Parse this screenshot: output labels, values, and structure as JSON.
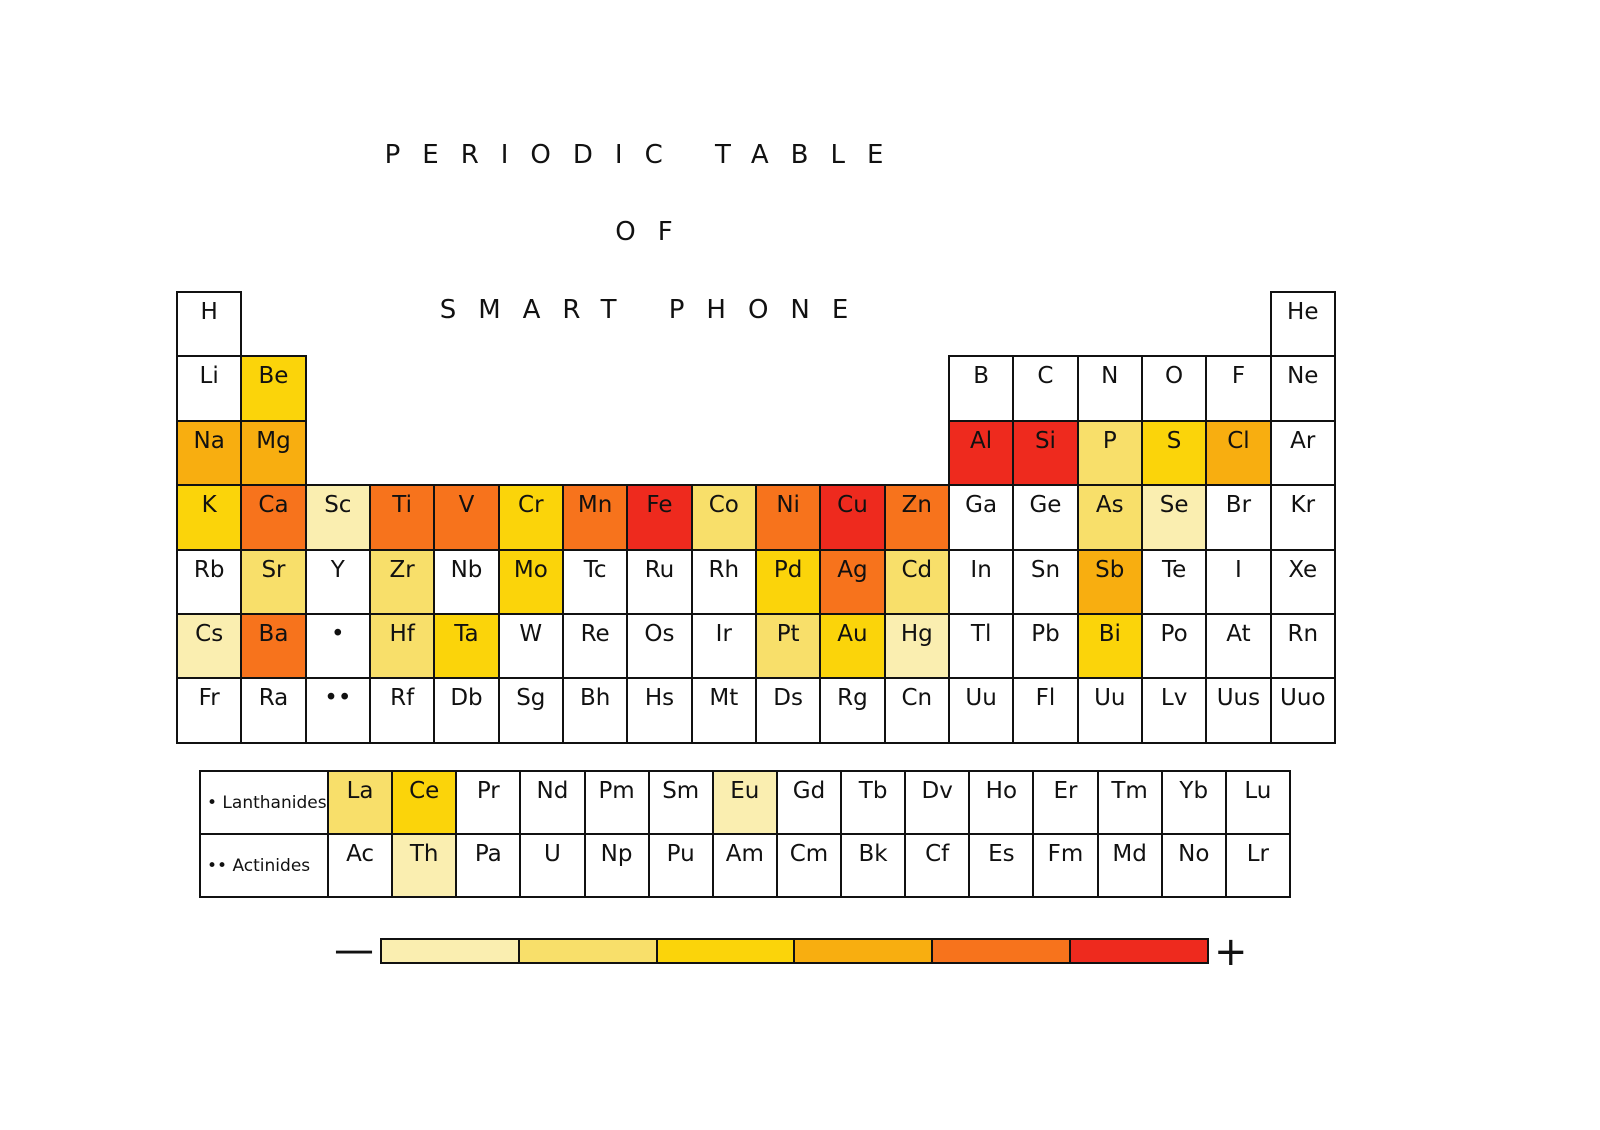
{
  "title": {
    "line1": "PERIODIC TABLE",
    "line2": "OF",
    "line3": "SMART PHONE"
  },
  "level_colors": [
    "#ffffff",
    "#faeeb0",
    "#f8df6a",
    "#fbd40a",
    "#f8ae10",
    "#f7731c",
    "#ee2a1e"
  ],
  "main_table": [
    [
      {
        "s": "H",
        "l": 0
      },
      {
        "s": "",
        "l": -1
      },
      {
        "s": "",
        "l": -1
      },
      {
        "s": "",
        "l": -1
      },
      {
        "s": "",
        "l": -1
      },
      {
        "s": "",
        "l": -1
      },
      {
        "s": "",
        "l": -1
      },
      {
        "s": "",
        "l": -1
      },
      {
        "s": "",
        "l": -1
      },
      {
        "s": "",
        "l": -1
      },
      {
        "s": "",
        "l": -1
      },
      {
        "s": "",
        "l": -1
      },
      {
        "s": "",
        "l": -1
      },
      {
        "s": "",
        "l": -1
      },
      {
        "s": "",
        "l": -1
      },
      {
        "s": "",
        "l": -1
      },
      {
        "s": "",
        "l": -1
      },
      {
        "s": "He",
        "l": 0
      }
    ],
    [
      {
        "s": "Li",
        "l": 0
      },
      {
        "s": "Be",
        "l": 3
      },
      {
        "s": "",
        "l": -1
      },
      {
        "s": "",
        "l": -1
      },
      {
        "s": "",
        "l": -1
      },
      {
        "s": "",
        "l": -1
      },
      {
        "s": "",
        "l": -1
      },
      {
        "s": "",
        "l": -1
      },
      {
        "s": "",
        "l": -1
      },
      {
        "s": "",
        "l": -1
      },
      {
        "s": "",
        "l": -1
      },
      {
        "s": "",
        "l": -1
      },
      {
        "s": "B",
        "l": 0
      },
      {
        "s": "C",
        "l": 0
      },
      {
        "s": "N",
        "l": 0
      },
      {
        "s": "O",
        "l": 0
      },
      {
        "s": "F",
        "l": 0
      },
      {
        "s": "Ne",
        "l": 0
      }
    ],
    [
      {
        "s": "Na",
        "l": 4
      },
      {
        "s": "Mg",
        "l": 4
      },
      {
        "s": "",
        "l": -1
      },
      {
        "s": "",
        "l": -1
      },
      {
        "s": "",
        "l": -1
      },
      {
        "s": "",
        "l": -1
      },
      {
        "s": "",
        "l": -1
      },
      {
        "s": "",
        "l": -1
      },
      {
        "s": "",
        "l": -1
      },
      {
        "s": "",
        "l": -1
      },
      {
        "s": "",
        "l": -1
      },
      {
        "s": "",
        "l": -1
      },
      {
        "s": "Al",
        "l": 6
      },
      {
        "s": "Si",
        "l": 6
      },
      {
        "s": "P",
        "l": 2
      },
      {
        "s": "S",
        "l": 3
      },
      {
        "s": "Cl",
        "l": 4
      },
      {
        "s": "Ar",
        "l": 0
      }
    ],
    [
      {
        "s": "K",
        "l": 3
      },
      {
        "s": "Ca",
        "l": 5
      },
      {
        "s": "Sc",
        "l": 1
      },
      {
        "s": "Ti",
        "l": 5
      },
      {
        "s": "V",
        "l": 5
      },
      {
        "s": "Cr",
        "l": 3
      },
      {
        "s": "Mn",
        "l": 5
      },
      {
        "s": "Fe",
        "l": 6
      },
      {
        "s": "Co",
        "l": 2
      },
      {
        "s": "Ni",
        "l": 5
      },
      {
        "s": "Cu",
        "l": 6
      },
      {
        "s": "Zn",
        "l": 5
      },
      {
        "s": "Ga",
        "l": 0
      },
      {
        "s": "Ge",
        "l": 0
      },
      {
        "s": "As",
        "l": 2
      },
      {
        "s": "Se",
        "l": 1
      },
      {
        "s": "Br",
        "l": 0
      },
      {
        "s": "Kr",
        "l": 0
      }
    ],
    [
      {
        "s": "Rb",
        "l": 0
      },
      {
        "s": "Sr",
        "l": 2
      },
      {
        "s": "Y",
        "l": 0
      },
      {
        "s": "Zr",
        "l": 2
      },
      {
        "s": "Nb",
        "l": 0
      },
      {
        "s": "Mo",
        "l": 3
      },
      {
        "s": "Tc",
        "l": 0
      },
      {
        "s": "Ru",
        "l": 0
      },
      {
        "s": "Rh",
        "l": 0
      },
      {
        "s": "Pd",
        "l": 3
      },
      {
        "s": "Ag",
        "l": 5
      },
      {
        "s": "Cd",
        "l": 2
      },
      {
        "s": "In",
        "l": 0
      },
      {
        "s": "Sn",
        "l": 0
      },
      {
        "s": "Sb",
        "l": 4
      },
      {
        "s": "Te",
        "l": 0
      },
      {
        "s": "I",
        "l": 0
      },
      {
        "s": "Xe",
        "l": 0
      }
    ],
    [
      {
        "s": "Cs",
        "l": 1
      },
      {
        "s": "Ba",
        "l": 5
      },
      {
        "s": "•",
        "l": 0
      },
      {
        "s": "Hf",
        "l": 2
      },
      {
        "s": "Ta",
        "l": 3
      },
      {
        "s": "W",
        "l": 0
      },
      {
        "s": "Re",
        "l": 0
      },
      {
        "s": "Os",
        "l": 0
      },
      {
        "s": "Ir",
        "l": 0
      },
      {
        "s": "Pt",
        "l": 2
      },
      {
        "s": "Au",
        "l": 3
      },
      {
        "s": "Hg",
        "l": 1
      },
      {
        "s": "Tl",
        "l": 0
      },
      {
        "s": "Pb",
        "l": 0
      },
      {
        "s": "Bi",
        "l": 3
      },
      {
        "s": "Po",
        "l": 0
      },
      {
        "s": "At",
        "l": 0
      },
      {
        "s": "Rn",
        "l": 0
      }
    ],
    [
      {
        "s": "Fr",
        "l": 0
      },
      {
        "s": "Ra",
        "l": 0
      },
      {
        "s": "••",
        "l": 0
      },
      {
        "s": "Rf",
        "l": 0
      },
      {
        "s": "Db",
        "l": 0
      },
      {
        "s": "Sg",
        "l": 0
      },
      {
        "s": "Bh",
        "l": 0
      },
      {
        "s": "Hs",
        "l": 0
      },
      {
        "s": "Mt",
        "l": 0
      },
      {
        "s": "Ds",
        "l": 0
      },
      {
        "s": "Rg",
        "l": 0
      },
      {
        "s": "Cn",
        "l": 0
      },
      {
        "s": "Uu",
        "l": 0
      },
      {
        "s": "Fl",
        "l": 0
      },
      {
        "s": "Uu",
        "l": 0
      },
      {
        "s": "Lv",
        "l": 0
      },
      {
        "s": "Uus",
        "l": 0
      },
      {
        "s": "Uuo",
        "l": 0
      }
    ]
  ],
  "f_block": [
    {
      "label": "• Lanthanides",
      "cells": [
        {
          "s": "La",
          "l": 2
        },
        {
          "s": "Ce",
          "l": 3
        },
        {
          "s": "Pr",
          "l": 0
        },
        {
          "s": "Nd",
          "l": 0
        },
        {
          "s": "Pm",
          "l": 0
        },
        {
          "s": "Sm",
          "l": 0
        },
        {
          "s": "Eu",
          "l": 1
        },
        {
          "s": "Gd",
          "l": 0
        },
        {
          "s": "Tb",
          "l": 0
        },
        {
          "s": "Dv",
          "l": 0
        },
        {
          "s": "Ho",
          "l": 0
        },
        {
          "s": "Er",
          "l": 0
        },
        {
          "s": "Tm",
          "l": 0
        },
        {
          "s": "Yb",
          "l": 0
        },
        {
          "s": "Lu",
          "l": 0
        }
      ]
    },
    {
      "label": "•• Actinides",
      "cells": [
        {
          "s": "Ac",
          "l": 0
        },
        {
          "s": "Th",
          "l": 1
        },
        {
          "s": "Pa",
          "l": 0
        },
        {
          "s": "U",
          "l": 0
        },
        {
          "s": "Np",
          "l": 0
        },
        {
          "s": "Pu",
          "l": 0
        },
        {
          "s": "Am",
          "l": 0
        },
        {
          "s": "Cm",
          "l": 0
        },
        {
          "s": "Bk",
          "l": 0
        },
        {
          "s": "Cf",
          "l": 0
        },
        {
          "s": "Es",
          "l": 0
        },
        {
          "s": "Fm",
          "l": 0
        },
        {
          "s": "Md",
          "l": 0
        },
        {
          "s": "No",
          "l": 0
        },
        {
          "s": "Lr",
          "l": 0
        }
      ]
    }
  ],
  "legend": {
    "min_label": "—",
    "max_label": "+",
    "levels": [
      1,
      2,
      3,
      4,
      5,
      6
    ]
  }
}
